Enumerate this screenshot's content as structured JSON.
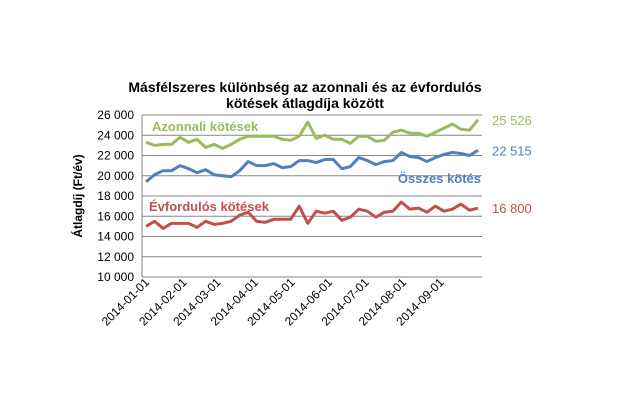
{
  "chart_data": {
    "type": "line",
    "title": [
      "Másfélszeres különbség az azonnali és az évfordulós",
      "kötések átlagdíja között"
    ],
    "xlabel": "",
    "ylabel": "Átlagdíj (Ft/év)",
    "ylim": [
      10000,
      26000
    ],
    "yticks": [
      10000,
      12000,
      14000,
      16000,
      18000,
      20000,
      22000,
      24000,
      26000
    ],
    "ytick_labels": [
      "10 000",
      "12 000",
      "14 000",
      "16 000",
      "18 000",
      "20 000",
      "22 000",
      "24 000",
      "26 000"
    ],
    "xtick_labels": [
      "2014-01-01",
      "2014-02-01",
      "2014-03-01",
      "2014-04-01",
      "2014-05-01",
      "2014-06-01",
      "2014-07-01",
      "2014-08-01",
      "2014-09-01"
    ],
    "xtick_index": [
      0,
      4.4,
      8.4,
      12.8,
      17.1,
      21.5,
      25.8,
      30.2,
      34.6
    ],
    "grid": true,
    "series": [
      {
        "name": "Azonnali kötések",
        "color": "#9bbb59",
        "end_label": "25 526",
        "values": [
          23300,
          23000,
          23100,
          23100,
          23800,
          23300,
          23600,
          22800,
          23100,
          22700,
          23100,
          23600,
          23900,
          23900,
          23900,
          23900,
          23600,
          23500,
          23900,
          25300,
          23700,
          24000,
          23600,
          23600,
          23200,
          23900,
          23900,
          23400,
          23500,
          24300,
          24500,
          24200,
          24200,
          23900,
          24300,
          24700,
          25100,
          24600,
          24500,
          25526
        ]
      },
      {
        "name": "Összes kötés",
        "color": "#4f81bd",
        "end_label": "22 515",
        "values": [
          19400,
          20100,
          20500,
          20500,
          21000,
          20700,
          20300,
          20600,
          20100,
          20000,
          19900,
          20500,
          21400,
          21000,
          21000,
          21200,
          20800,
          20900,
          21500,
          21500,
          21300,
          21600,
          21600,
          20700,
          20900,
          21800,
          21500,
          21100,
          21400,
          21500,
          22300,
          21900,
          21800,
          21400,
          21800,
          22100,
          22300,
          22200,
          22000,
          22515
        ]
      },
      {
        "name": "Évfordulós kötések",
        "color": "#c0504d",
        "end_label": "16 800",
        "values": [
          15000,
          15500,
          14800,
          15300,
          15300,
          15300,
          14900,
          15500,
          15200,
          15300,
          15500,
          16100,
          16400,
          15500,
          15400,
          15700,
          15700,
          15700,
          17000,
          15300,
          16500,
          16300,
          16500,
          15600,
          15900,
          16700,
          16500,
          15900,
          16400,
          16500,
          17400,
          16700,
          16800,
          16400,
          17000,
          16500,
          16700,
          17200,
          16600,
          16800
        ]
      }
    ]
  }
}
